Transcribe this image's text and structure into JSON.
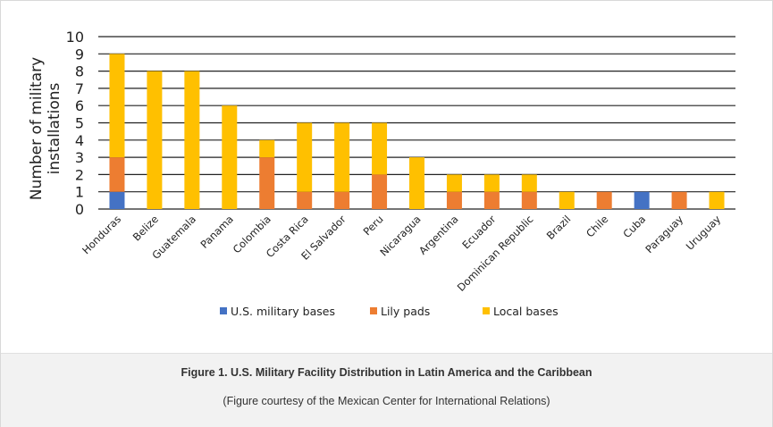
{
  "chart_data": {
    "type": "bar",
    "stacked": true,
    "title": "",
    "xlabel": "",
    "ylabel": "Number of military installations",
    "ylim": [
      0,
      10
    ],
    "yticks": [
      0,
      1,
      2,
      3,
      4,
      5,
      6,
      7,
      8,
      9,
      10
    ],
    "grid": true,
    "legend_position": "bottom",
    "categories": [
      "Honduras",
      "Belize",
      "Guatemala",
      "Panama",
      "Colombia",
      "Costa Rica",
      "El Salvador",
      "Peru",
      "Nicaragua",
      "Argentina",
      "Ecuador",
      "Dominican Republic",
      "Brazil",
      "Chile",
      "Cuba",
      "Paraguay",
      "Uruguay"
    ],
    "series": [
      {
        "name": "U.S. military bases",
        "color": "#4472c4",
        "values": [
          1,
          0,
          0,
          0,
          0,
          0,
          0,
          0,
          0,
          0,
          0,
          0,
          0,
          0,
          1,
          0,
          0
        ]
      },
      {
        "name": "Lily pads",
        "color": "#ed7d31",
        "values": [
          2,
          0,
          0,
          0,
          3,
          1,
          1,
          2,
          0,
          1,
          1,
          1,
          0,
          1,
          0,
          1,
          0
        ]
      },
      {
        "name": "Local bases",
        "color": "#ffc000",
        "values": [
          6,
          8,
          8,
          6,
          1,
          4,
          4,
          3,
          3,
          1,
          1,
          1,
          1,
          0,
          0,
          0,
          1
        ]
      }
    ]
  },
  "caption": {
    "title": "Figure 1. U.S. Military Facility Distribution in Latin America and the Caribbean",
    "subtitle": "(Figure courtesy of the Mexican Center for International Relations)"
  }
}
